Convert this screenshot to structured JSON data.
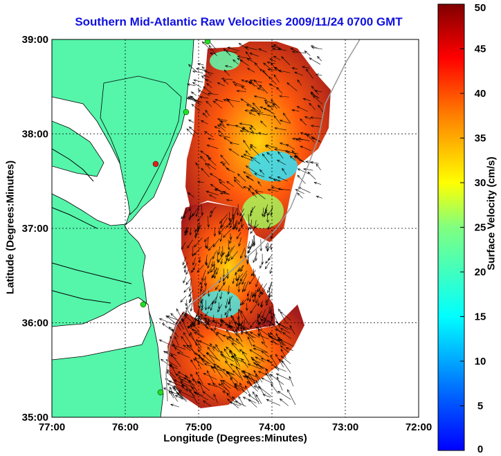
{
  "title": "Southern Mid-Atlantic Raw Velocities 2009/11/24 0700 GMT",
  "xlabel": "Longitude (Degrees:Minutes)",
  "ylabel": "Latitude (Degrees:Minutes)",
  "colorbar_label": "Surface Velocity (cm/s)",
  "colors": {
    "land": "#55f5aa",
    "water": "#ffffff",
    "title": "#1010e0"
  },
  "chart_data": {
    "type": "heatmap",
    "title": "Southern Mid-Atlantic Raw Velocities 2009/11/24 0700 GMT",
    "xlabel": "Longitude (Degrees:Minutes)",
    "ylabel": "Latitude (Degrees:Minutes)",
    "xlim": [
      -77,
      -72
    ],
    "ylim": [
      35,
      39
    ],
    "x_ticks": [
      "77:00",
      "76:00",
      "75:00",
      "74:00",
      "73:00",
      "72:00"
    ],
    "y_ticks": [
      "35:00",
      "36:00",
      "37:00",
      "38:00",
      "39:00"
    ],
    "grid": true,
    "colorbar": {
      "label": "Surface Velocity (cm/s)",
      "range": [
        0,
        50
      ],
      "ticks": [
        "0",
        "5",
        "10",
        "15",
        "20",
        "25",
        "30",
        "35",
        "40",
        "45",
        "50"
      ]
    }
  }
}
